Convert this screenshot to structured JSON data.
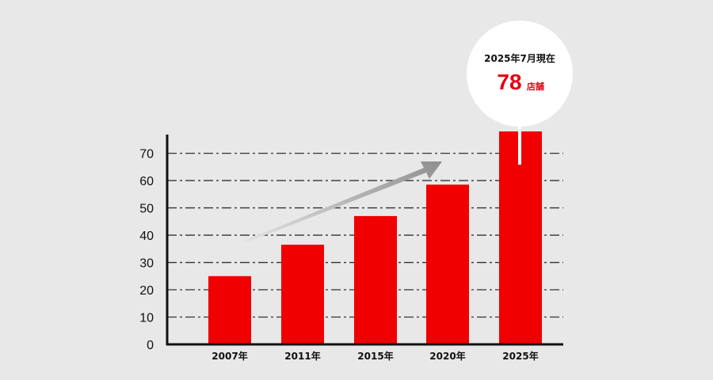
{
  "chart_data": {
    "type": "bar",
    "categories": [
      "2007年",
      "2011年",
      "2015年",
      "2020年",
      "2025年"
    ],
    "values": [
      25,
      36.5,
      47,
      58.5,
      78
    ],
    "ylim": [
      0,
      78
    ],
    "yticks": [
      0,
      10,
      20,
      30,
      40,
      50,
      60,
      70
    ],
    "grid": true,
    "title": "",
    "xlabel": "",
    "ylabel": "",
    "annotations": {
      "callout_date": "2025年7月現在",
      "callout_value": "78",
      "callout_unit": "店舗"
    },
    "colors": {
      "bar": "#f00000",
      "arrow": "#9a9a9a",
      "grid": "#333333",
      "callout_value": "#e60012"
    }
  }
}
